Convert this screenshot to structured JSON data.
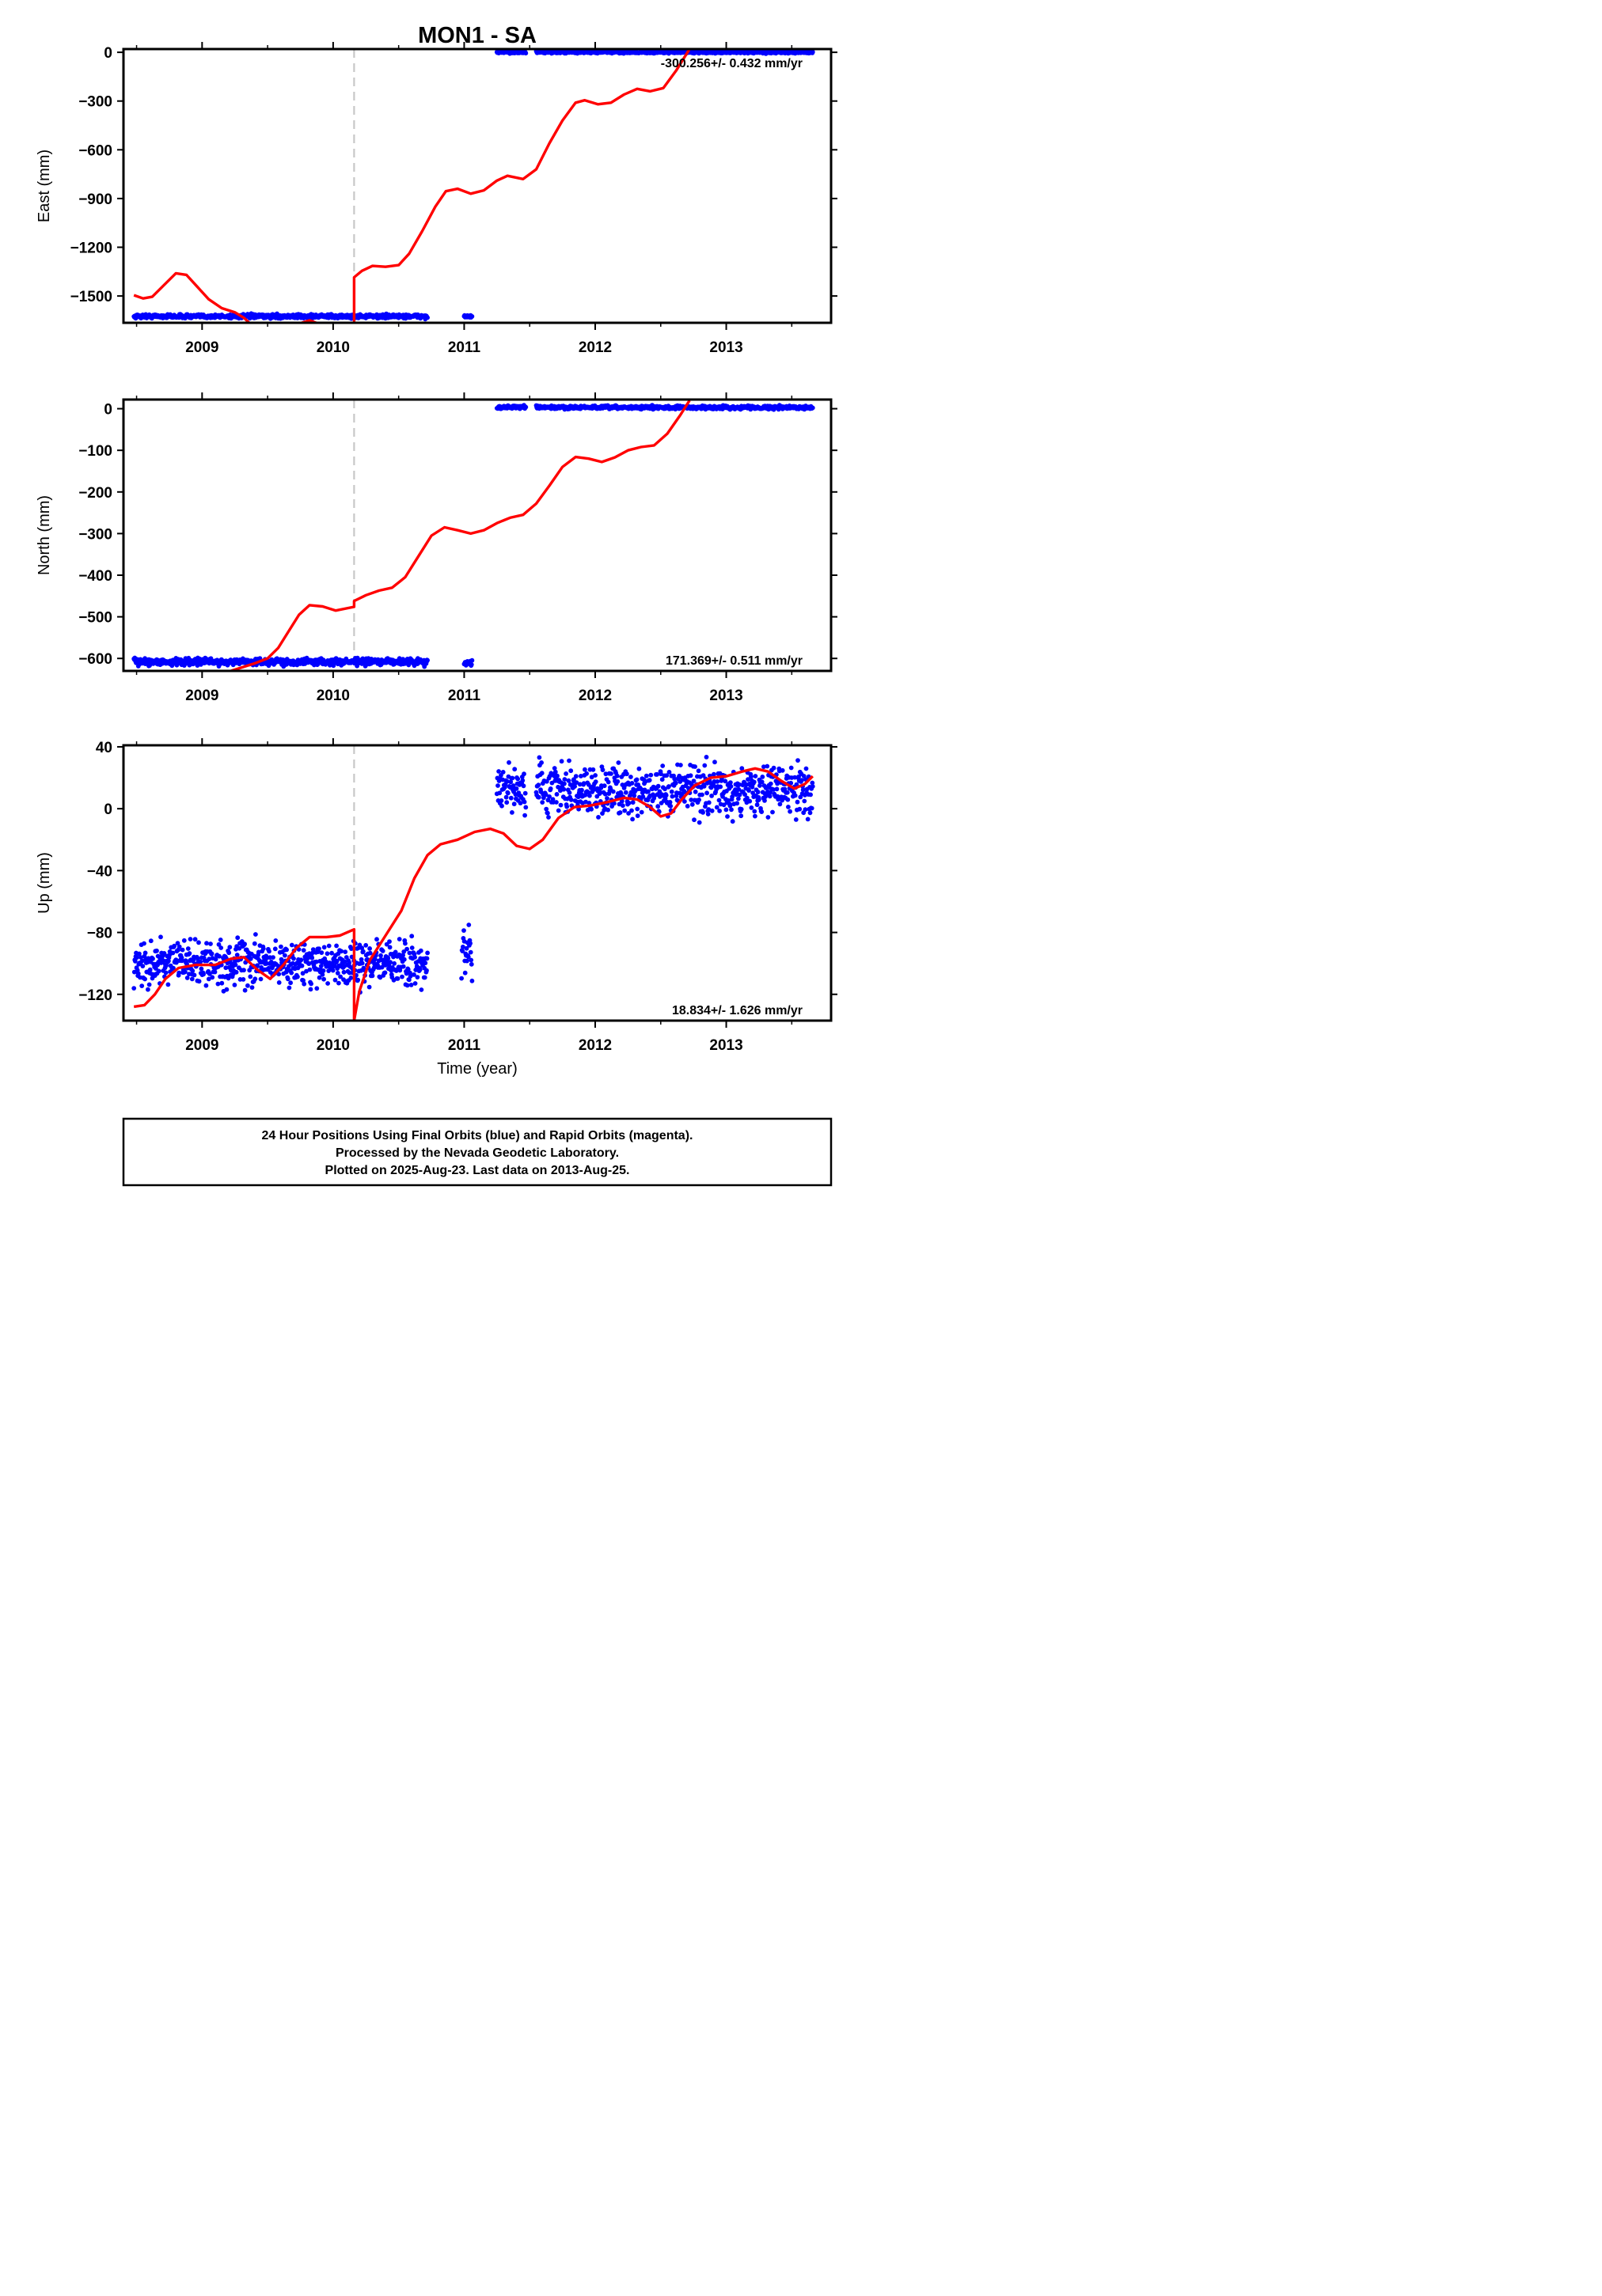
{
  "title": "MON1 - SA",
  "xlabel": "Time (year)",
  "footer": {
    "line1": "24 Hour Positions Using Final Orbits (blue) and Rapid Orbits (magenta).",
    "line2": "Processed by the Nevada Geodetic Laboratory.",
    "line3": "Plotted on 2025-Aug-23. Last data on 2013-Aug-25."
  },
  "colors": {
    "data": "#0000ff",
    "model": "#ff0000",
    "offset_line": "#c8c8c8"
  },
  "chart_data": [
    {
      "type": "scatter",
      "ylabel": "East (mm)",
      "rate_label": "-300.256+/- 0.432 mm/yr",
      "xlim": [
        2008.4,
        2013.8
      ],
      "ylim": [
        -1665,
        20
      ],
      "yticks": [
        "0",
        "-300",
        "-600",
        "-900",
        "-1200",
        "-1500"
      ],
      "xticks": [
        "2009",
        "2010",
        "2011",
        "2012",
        "2013"
      ],
      "offset_line_x": 2010.16,
      "data_segments": [
        {
          "x_start": 2008.48,
          "x_end": 2010.72,
          "y": -1625,
          "noise": 6
        },
        {
          "x_start": 2011.0,
          "x_end": 2011.06,
          "y": -1627,
          "noise": 4
        },
        {
          "x_start": 2011.25,
          "x_end": 2011.47,
          "y": 0,
          "noise": 3
        },
        {
          "x_start": 2011.55,
          "x_end": 2013.66,
          "y": 0,
          "noise": 3
        }
      ],
      "model_curve": [
        [
          2008.48,
          -1495
        ],
        [
          2008.55,
          -1515
        ],
        [
          2008.62,
          -1505
        ],
        [
          2008.7,
          -1440
        ],
        [
          2008.8,
          -1360
        ],
        [
          2008.88,
          -1370
        ],
        [
          2008.96,
          -1440
        ],
        [
          2009.05,
          -1520
        ],
        [
          2009.15,
          -1575
        ],
        [
          2009.25,
          -1600
        ],
        [
          2009.32,
          -1635
        ],
        [
          2009.36,
          -1665
        ],
        null,
        [
          2009.76,
          -1665
        ],
        [
          2009.82,
          -1650
        ],
        [
          2009.87,
          -1665
        ],
        null,
        [
          2010.16,
          -1665
        ],
        [
          2010.16,
          -1385
        ],
        [
          2010.22,
          -1345
        ],
        [
          2010.3,
          -1315
        ],
        [
          2010.4,
          -1320
        ],
        [
          2010.5,
          -1310
        ],
        [
          2010.58,
          -1240
        ],
        [
          2010.68,
          -1100
        ],
        [
          2010.78,
          -950
        ],
        [
          2010.86,
          -855
        ],
        [
          2010.95,
          -840
        ],
        [
          2011.05,
          -870
        ],
        [
          2011.15,
          -850
        ],
        [
          2011.25,
          -790
        ],
        [
          2011.33,
          -760
        ],
        [
          2011.45,
          -780
        ],
        [
          2011.55,
          -720
        ],
        [
          2011.65,
          -560
        ],
        [
          2011.75,
          -420
        ],
        [
          2011.85,
          -310
        ],
        [
          2011.92,
          -295
        ],
        [
          2012.02,
          -320
        ],
        [
          2012.12,
          -310
        ],
        [
          2012.22,
          -260
        ],
        [
          2012.32,
          -225
        ],
        [
          2012.42,
          -240
        ],
        [
          2012.52,
          -220
        ],
        [
          2012.62,
          -110
        ],
        [
          2012.72,
          20
        ]
      ]
    },
    {
      "type": "scatter",
      "ylabel": "North (mm)",
      "rate_label": "171.369+/- 0.511 mm/yr",
      "xlim": [
        2008.4,
        2013.8
      ],
      "ylim": [
        -630,
        22
      ],
      "yticks": [
        "0",
        "-100",
        "-200",
        "-300",
        "-400",
        "-500",
        "-600"
      ],
      "xticks": [
        "2009",
        "2010",
        "2011",
        "2012",
        "2013"
      ],
      "offset_line_x": 2010.16,
      "data_segments": [
        {
          "x_start": 2008.48,
          "x_end": 2010.72,
          "y": -608,
          "noise": 4
        },
        {
          "x_start": 2011.0,
          "x_end": 2011.06,
          "y": -612,
          "noise": 3
        },
        {
          "x_start": 2011.25,
          "x_end": 2011.47,
          "y": 4,
          "noise": 2
        },
        {
          "x_start": 2011.55,
          "x_end": 2013.66,
          "y": 3,
          "noise": 2
        }
      ],
      "model_curve": [
        [
          2009.22,
          -630
        ],
        [
          2009.3,
          -622
        ],
        [
          2009.4,
          -612
        ],
        [
          2009.5,
          -600
        ],
        [
          2009.58,
          -575
        ],
        [
          2009.66,
          -535
        ],
        [
          2009.74,
          -495
        ],
        [
          2009.82,
          -472
        ],
        [
          2009.92,
          -475
        ],
        [
          2010.02,
          -485
        ],
        [
          2010.16,
          -476
        ],
        [
          2010.16,
          -462
        ],
        [
          2010.25,
          -448
        ],
        [
          2010.35,
          -437
        ],
        [
          2010.45,
          -430
        ],
        [
          2010.55,
          -405
        ],
        [
          2010.65,
          -355
        ],
        [
          2010.75,
          -305
        ],
        [
          2010.85,
          -285
        ],
        [
          2010.95,
          -292
        ],
        [
          2011.05,
          -300
        ],
        [
          2011.15,
          -292
        ],
        [
          2011.25,
          -275
        ],
        [
          2011.35,
          -262
        ],
        [
          2011.45,
          -255
        ],
        [
          2011.55,
          -228
        ],
        [
          2011.65,
          -185
        ],
        [
          2011.75,
          -140
        ],
        [
          2011.85,
          -116
        ],
        [
          2011.95,
          -120
        ],
        [
          2012.05,
          -128
        ],
        [
          2012.15,
          -117
        ],
        [
          2012.25,
          -100
        ],
        [
          2012.35,
          -92
        ],
        [
          2012.45,
          -88
        ],
        [
          2012.55,
          -60
        ],
        [
          2012.65,
          -15
        ],
        [
          2012.72,
          20
        ]
      ]
    },
    {
      "type": "scatter",
      "ylabel": "Up (mm)",
      "rate_label": "18.834+/- 1.626 mm/yr",
      "xlim": [
        2008.4,
        2013.8
      ],
      "ylim": [
        -137,
        41
      ],
      "yticks": [
        "40",
        "0",
        "-40",
        "-80",
        "-120"
      ],
      "xticks": [
        "2009",
        "2010",
        "2011",
        "2012",
        "2013"
      ],
      "offset_line_x": 2010.16,
      "data_segments": [
        {
          "x_start": 2008.48,
          "x_end": 2010.72,
          "y": -100,
          "noise": 7
        },
        {
          "x_start": 2010.98,
          "x_end": 2011.06,
          "y": -97,
          "noise": 8
        },
        {
          "x_start": 2011.25,
          "x_end": 2011.47,
          "y": 12,
          "noise": 7
        },
        {
          "x_start": 2011.55,
          "x_end": 2013.66,
          "y": 12,
          "noise": 8
        }
      ],
      "model_curve": [
        [
          2008.48,
          -128
        ],
        [
          2008.56,
          -127
        ],
        [
          2008.64,
          -120
        ],
        [
          2008.72,
          -110
        ],
        [
          2008.82,
          -103
        ],
        [
          2008.95,
          -101
        ],
        [
          2009.1,
          -101
        ],
        [
          2009.22,
          -97
        ],
        [
          2009.32,
          -96
        ],
        [
          2009.42,
          -104
        ],
        [
          2009.52,
          -110
        ],
        [
          2009.62,
          -101
        ],
        [
          2009.72,
          -90
        ],
        [
          2009.82,
          -83
        ],
        [
          2009.95,
          -83
        ],
        [
          2010.05,
          -82
        ],
        [
          2010.16,
          -78
        ],
        [
          2010.16,
          -137
        ],
        [
          2010.2,
          -118
        ],
        [
          2010.28,
          -98
        ],
        [
          2010.4,
          -82
        ],
        [
          2010.52,
          -66
        ],
        [
          2010.62,
          -45
        ],
        [
          2010.72,
          -30
        ],
        [
          2010.82,
          -23
        ],
        [
          2010.95,
          -20
        ],
        [
          2011.08,
          -15
        ],
        [
          2011.2,
          -13
        ],
        [
          2011.3,
          -16
        ],
        [
          2011.4,
          -24
        ],
        [
          2011.5,
          -26
        ],
        [
          2011.6,
          -20
        ],
        [
          2011.72,
          -6
        ],
        [
          2011.84,
          1
        ],
        [
          2011.96,
          2
        ],
        [
          2012.08,
          4
        ],
        [
          2012.22,
          7
        ],
        [
          2012.32,
          6
        ],
        [
          2012.42,
          1
        ],
        [
          2012.5,
          -5
        ],
        [
          2012.58,
          -3
        ],
        [
          2012.66,
          6
        ],
        [
          2012.76,
          15
        ],
        [
          2012.88,
          20
        ],
        [
          2013.0,
          21
        ],
        [
          2013.12,
          24
        ],
        [
          2013.22,
          26
        ],
        [
          2013.32,
          24
        ],
        [
          2013.42,
          18
        ],
        [
          2013.52,
          13
        ],
        [
          2013.6,
          16
        ],
        [
          2013.66,
          21
        ]
      ]
    }
  ]
}
